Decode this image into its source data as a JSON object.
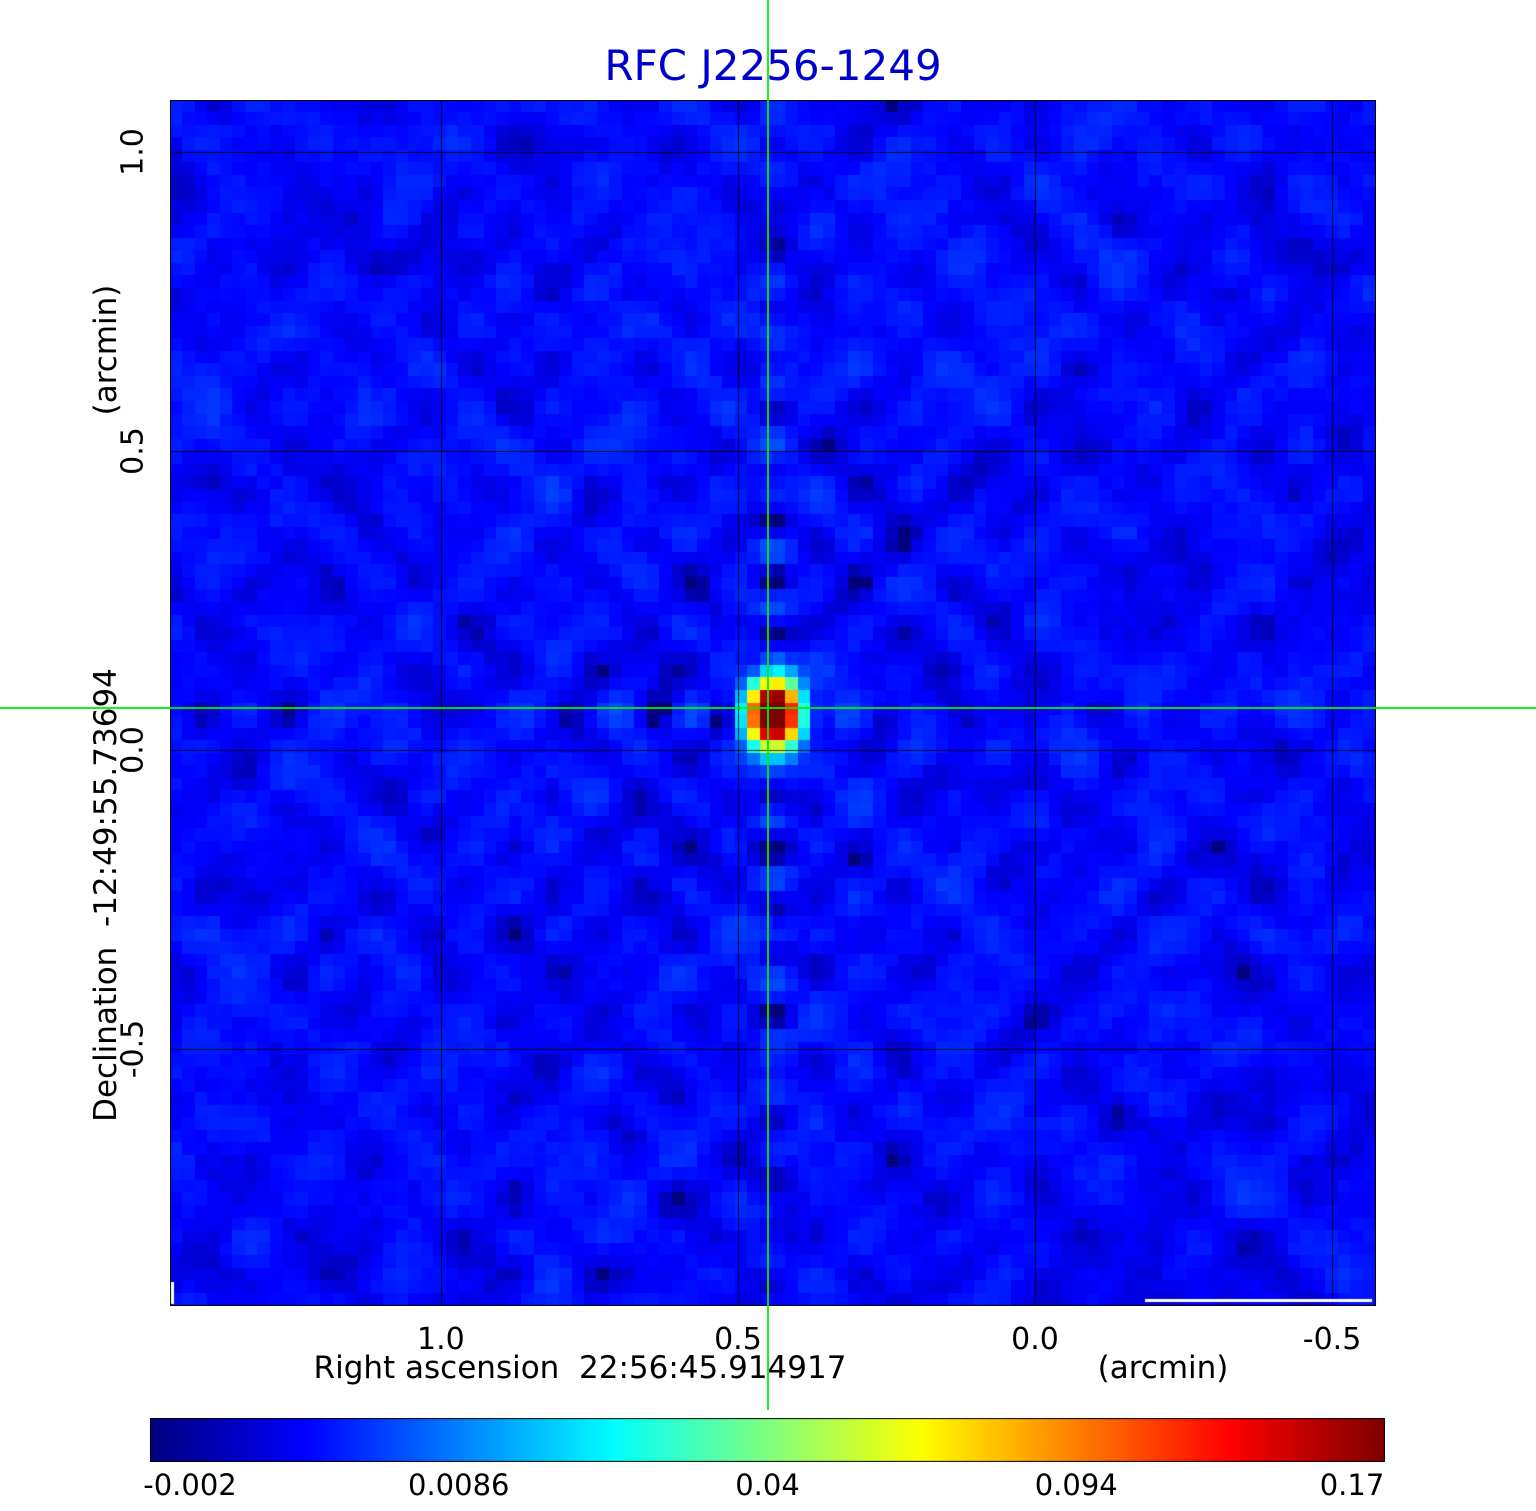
{
  "title": "RFC J2256-1249",
  "title_color": "#0000cd",
  "axes": {
    "x_label": "Right ascension  22:56:45.914917",
    "x_unit": "(arcmin)",
    "y_label": "Declination  -12:49:55.73694",
    "y_unit": "(arcmin)",
    "x_ticks": [
      "1.0",
      "0.5",
      "0.0",
      "-0.5"
    ],
    "y_ticks": [
      "1.0",
      "0.5",
      "0.0",
      "-0.5"
    ]
  },
  "chart_data": {
    "type": "heatmap",
    "title": "RFC J2256-1249",
    "xlabel": "Right ascension 22:56:45.914917 (arcmin)",
    "ylabel": "Declination -12:49:55.73694 (arcmin)",
    "x_range_arcmin": [
      1.456,
      -0.574
    ],
    "y_range_arcmin": [
      -0.93,
      1.087
    ],
    "x_tick_values": [
      1.0,
      0.5,
      0.0,
      -0.5
    ],
    "y_tick_values": [
      1.0,
      0.5,
      0.0,
      -0.5
    ],
    "grid": true,
    "colormap": "jet",
    "color_scale": "quadratic",
    "value_min": -0.002,
    "value_max": 0.17,
    "colorbar_ticks": [
      -0.002,
      0.0086,
      0.04,
      0.094,
      0.17
    ],
    "colorbar_tick_labels": [
      "-0.002",
      "0.0086",
      "0.04",
      "0.094",
      "0.17"
    ],
    "background_value": 0.0,
    "noise_rms": 0.0013,
    "crosshair_color": "#00ee00",
    "source": {
      "x_arcmin": 0.45,
      "y_arcmin": 0.07,
      "peak_value": 0.17,
      "sigma_x_arcmin": 0.024,
      "sigma_y_arcmin": 0.033
    }
  }
}
